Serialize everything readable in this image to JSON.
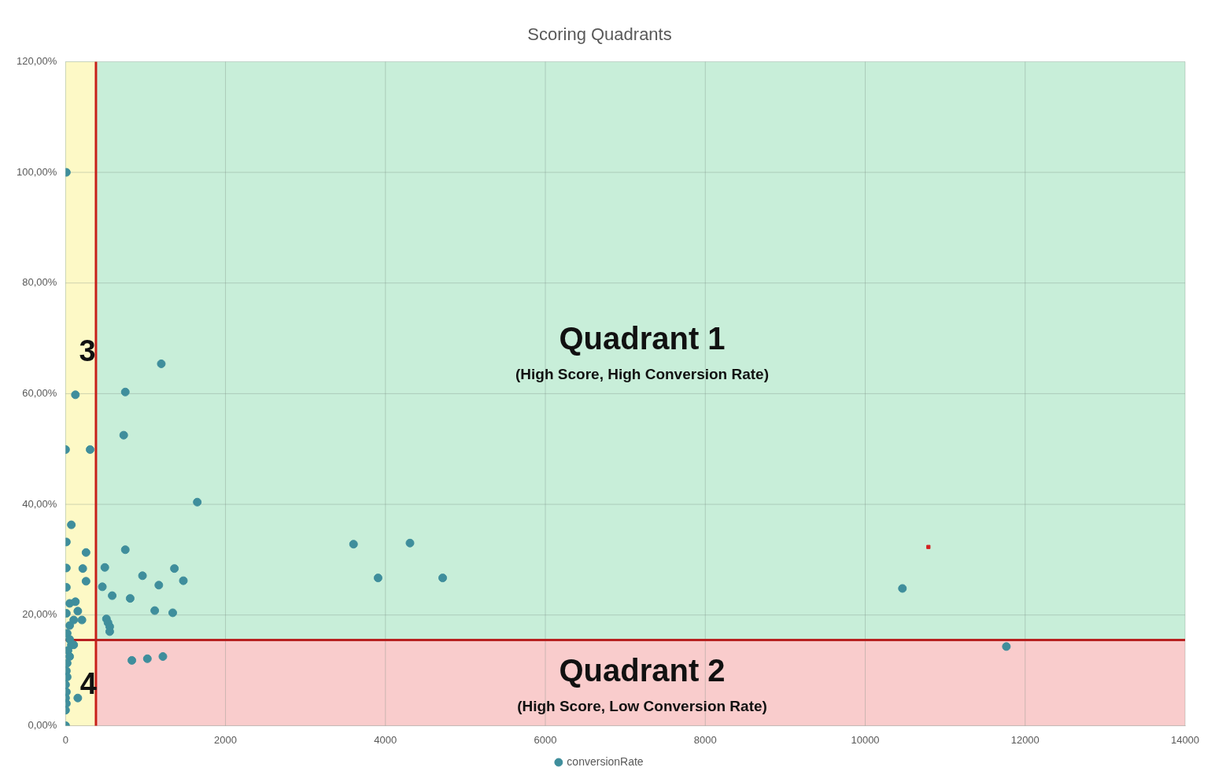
{
  "chart_data": {
    "type": "scatter",
    "title": "Scoring Quadrants",
    "xlim": [
      0,
      14000
    ],
    "xticks": [
      0,
      2000,
      4000,
      6000,
      8000,
      10000,
      12000,
      14000
    ],
    "ylim": [
      0,
      120
    ],
    "yticks": [
      {
        "value": 0,
        "label": "0,00%"
      },
      {
        "value": 20,
        "label": "20,00%"
      },
      {
        "value": 40,
        "label": "40,00%"
      },
      {
        "value": 60,
        "label": "60,00%"
      },
      {
        "value": 80,
        "label": "80,00%"
      },
      {
        "value": 100,
        "label": "100,00%"
      },
      {
        "value": 120,
        "label": "120,00%"
      }
    ],
    "grid": true,
    "legend": "bottom",
    "marker": "circle",
    "series": [
      {
        "name": "conversionRate",
        "color": "#3f8e9c",
        "x": [
          10,
          747,
          727,
          1197,
          123,
          0,
          307,
          1647,
          72,
          10,
          256,
          747,
          10,
          215,
          491,
          256,
          10,
          460,
          962,
          1361,
          1473,
          1166,
          583,
          808,
          1115,
          1340,
          511,
          531,
          552,
          552,
          51,
          123,
          10,
          102,
          205,
          153,
          51,
          20,
          51,
          72,
          102,
          31,
          51,
          20,
          10,
          20,
          0,
          10,
          0,
          10,
          0,
          0,
          153,
          829,
          1023,
          1217,
          3601,
          3908,
          4307,
          4716,
          10465,
          11765
        ],
        "values": [
          100,
          60.3,
          52.5,
          65.4,
          59.8,
          49.9,
          49.9,
          40.4,
          36.3,
          33.2,
          31.3,
          31.8,
          28.5,
          28.4,
          28.6,
          26.1,
          25,
          25.1,
          27.1,
          28.4,
          26.2,
          25.4,
          23.5,
          23,
          20.8,
          20.4,
          19.3,
          18.6,
          17.9,
          17,
          22.1,
          22.4,
          20.3,
          19.1,
          19.1,
          20.7,
          18.1,
          16.7,
          15.6,
          14.6,
          14.6,
          13.6,
          12.5,
          11.3,
          9.9,
          8.8,
          7.4,
          6.1,
          5,
          4,
          2.8,
          0,
          5,
          11.8,
          12.1,
          12.5,
          32.8,
          26.7,
          33,
          26.7,
          24.8,
          14.3
        ]
      },
      {
        "color": "#d42020",
        "marker": "square",
        "x": [
          10790
        ],
        "values": [
          32.3
        ]
      }
    ],
    "bands": [
      {
        "axis": "y",
        "from": 15.5,
        "to": 120,
        "color": "#c8eed9"
      },
      {
        "axis": "y",
        "from": 0,
        "to": 15.5,
        "color": "#f9cccc"
      },
      {
        "axis": "x",
        "from": 0,
        "to": 380,
        "color": "#fdf9c6"
      }
    ],
    "ref_lines": [
      {
        "axis": "x",
        "value": 380,
        "color": "#c8201a"
      },
      {
        "axis": "y",
        "value": 15.5,
        "color": "#b82020"
      }
    ],
    "annotations": [
      "Quadrant 1",
      "(High Score, High Conversion Rate)",
      "3",
      "4",
      "Quadrant 2",
      "(High Score, Low Conversion Rate)"
    ]
  }
}
